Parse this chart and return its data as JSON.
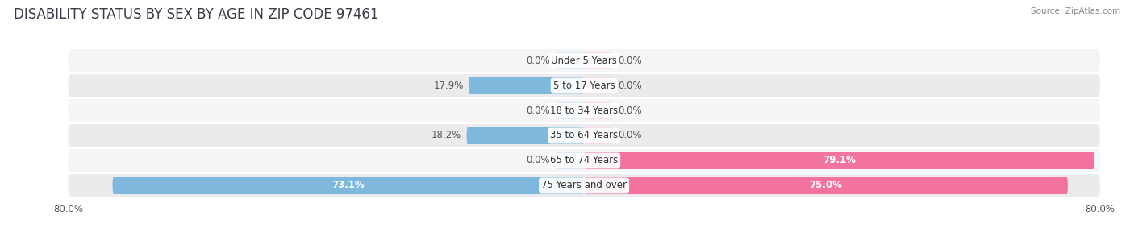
{
  "title": "DISABILITY STATUS BY SEX BY AGE IN ZIP CODE 97461",
  "source": "Source: ZipAtlas.com",
  "categories": [
    "Under 5 Years",
    "5 to 17 Years",
    "18 to 34 Years",
    "35 to 64 Years",
    "65 to 74 Years",
    "75 Years and over"
  ],
  "male_values": [
    0.0,
    17.9,
    0.0,
    18.2,
    0.0,
    73.1
  ],
  "female_values": [
    0.0,
    0.0,
    0.0,
    0.0,
    79.1,
    75.0
  ],
  "male_color": "#7EB8DC",
  "female_color": "#F472A0",
  "male_color_light": "#C5DCF0",
  "female_color_light": "#F9C0D4",
  "row_bg_odd": "#EBEBEE",
  "row_bg_even": "#F5F5F8",
  "max_val": 80.0,
  "title_fontsize": 12,
  "label_fontsize": 8.5,
  "tick_fontsize": 8.5,
  "stub_val": 4.5
}
